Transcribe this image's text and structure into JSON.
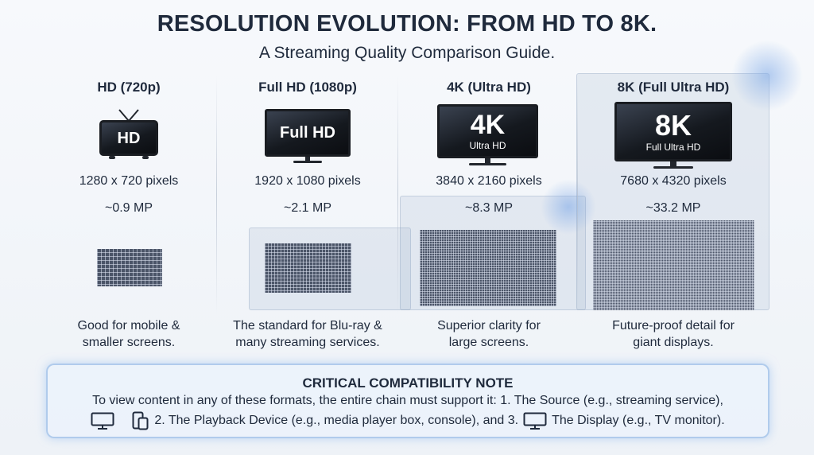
{
  "header": {
    "title": "RESOLUTION EVOLUTION: FROM HD TO 8K.",
    "subtitle": "A Streaming Quality Comparison Guide."
  },
  "colors": {
    "accent_glow": "#78a5e6",
    "panel": "#96aac8",
    "text": "#1f2a3c",
    "grid": "#4b5568"
  },
  "columns": [
    {
      "heading": "HD (720p)",
      "tv_label": "HD",
      "tv_sublabel": "",
      "pixels": "1280 x 720 pixels",
      "megapixels_text": "~0.9 MP",
      "megapixels": 0.9,
      "description_line1": "Good for mobile &",
      "description_line2": "smaller screens."
    },
    {
      "heading": "Full HD (1080p)",
      "tv_label": "Full HD",
      "tv_sublabel": "",
      "pixels": "1920 x 1080 pixels",
      "megapixels_text": "~2.1 MP",
      "megapixels": 2.1,
      "description_line1": "The standard for Blu-ray &",
      "description_line2": "many streaming services."
    },
    {
      "heading": "4K (Ultra HD)",
      "tv_label": "4K",
      "tv_sublabel": "Ultra HD",
      "pixels": "3840 x 2160 pixels",
      "megapixels_text": "~8.3 MP",
      "megapixels": 8.3,
      "description_line1": "Superior clarity for",
      "description_line2": "large screens."
    },
    {
      "heading": "8K (Full Ultra HD)",
      "tv_label": "8K",
      "tv_sublabel": "Full Ultra HD",
      "pixels": "7680 x 4320 pixels",
      "megapixels_text": "~33.2 MP",
      "megapixels": 33.2,
      "description_line1": "Future-proof detail for",
      "description_line2": "giant displays."
    }
  ],
  "note": {
    "title": "CRITICAL COMPATIBILITY NOTE",
    "line1": "To view content in any of these formats, the entire chain must support it: 1. The Source (e.g., streaming service),",
    "line2_part1": "2. The Playback Device (e.g., media player box, console), and 3.",
    "line2_part2": "The Display (e.g., TV monitor).",
    "icons": [
      "monitor-icon",
      "phone-icon",
      "monitor-icon"
    ]
  }
}
